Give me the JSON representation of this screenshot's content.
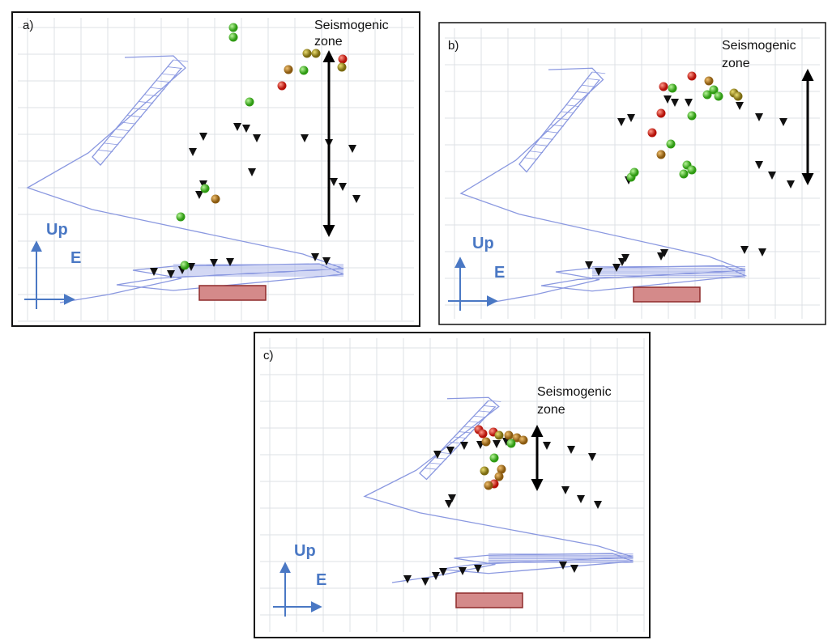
{
  "panels": [
    {
      "label": "a)",
      "zone_label": [
        "Seismogenic",
        "zone"
      ],
      "up": "Up",
      "east": "E"
    },
    {
      "label": "b)",
      "zone_label": [
        "Seismogenic",
        "zone"
      ],
      "up": "Up",
      "east": "E"
    },
    {
      "label": "c)",
      "zone_label": [
        "Seismogenic",
        "zone"
      ],
      "up": "Up",
      "east": "E"
    }
  ]
}
